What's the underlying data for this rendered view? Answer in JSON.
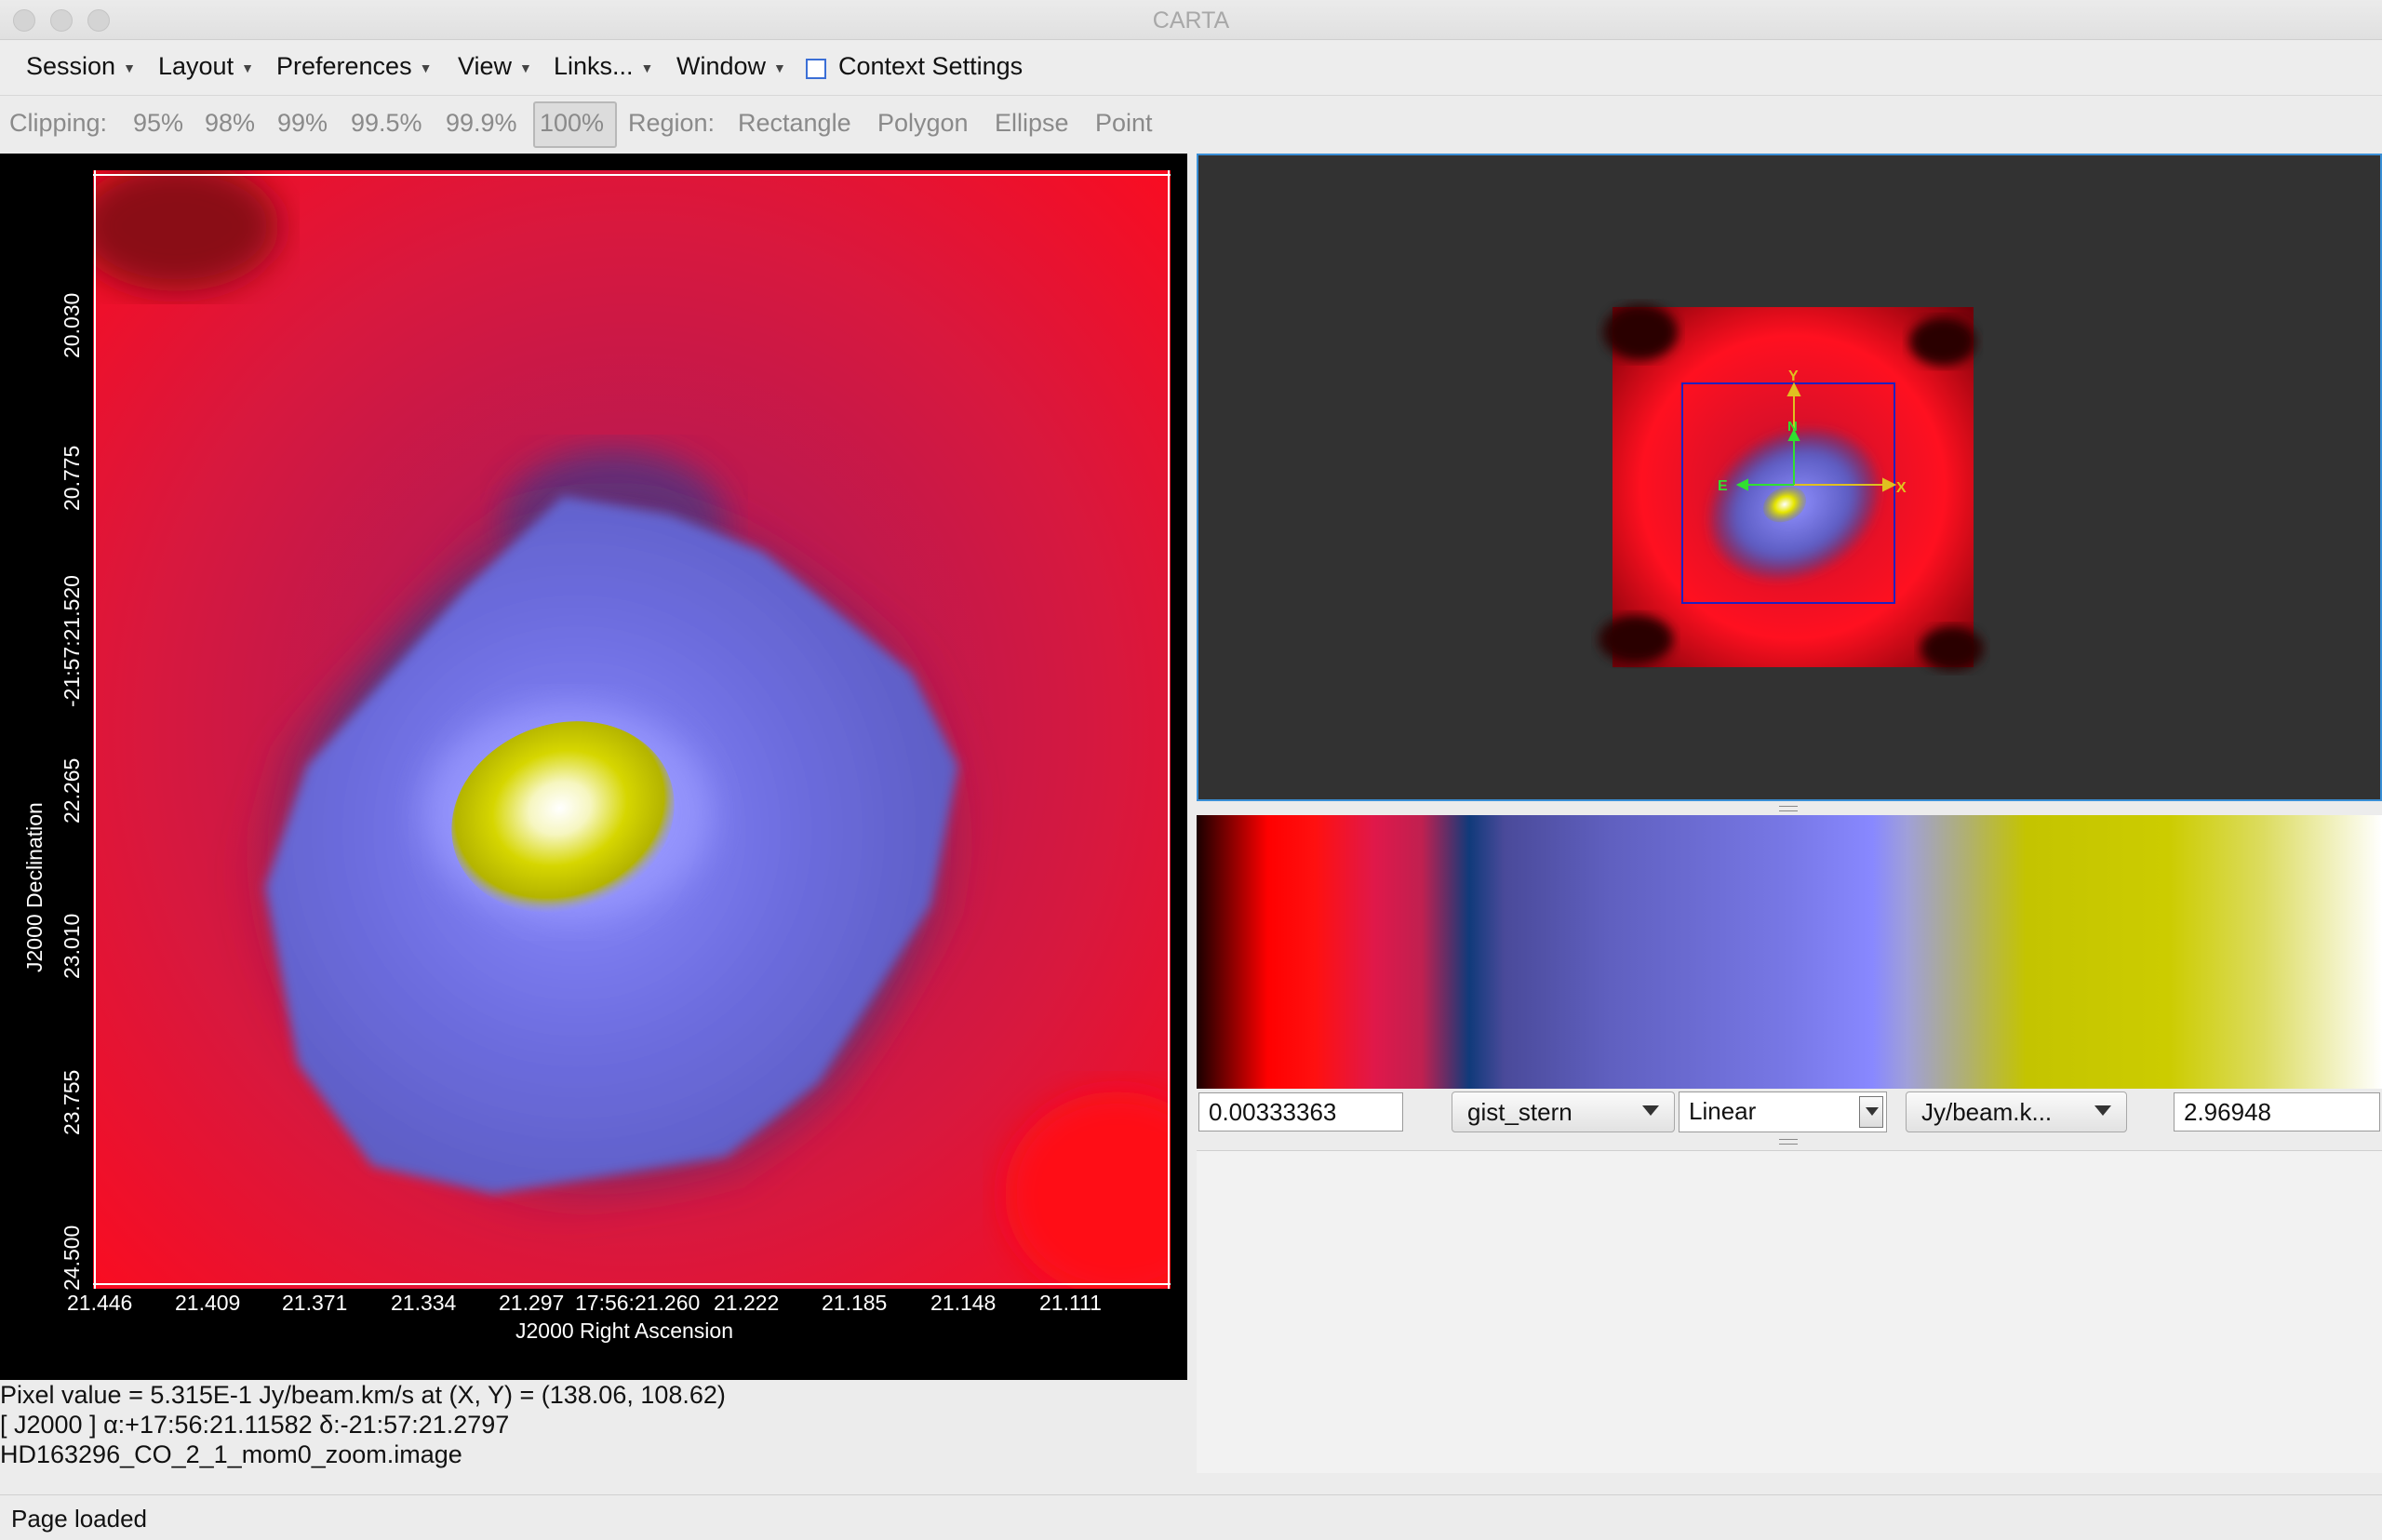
{
  "window": {
    "title": "CARTA"
  },
  "menu": {
    "session": "Session",
    "layout": "Layout",
    "preferences": "Preferences",
    "view": "View",
    "links": "Links...",
    "window": "Window",
    "context_settings": "Context Settings"
  },
  "toolbar": {
    "clipping_label": "Clipping:",
    "clip_options": [
      "95%",
      "98%",
      "99%",
      "99.5%",
      "99.9%",
      "100%"
    ],
    "clip_selected": "100%",
    "region_label": "Region:",
    "region_options": [
      "Rectangle",
      "Polygon",
      "Ellipse",
      "Point"
    ]
  },
  "image_view": {
    "y_ticks": [
      "20.030",
      "20.775",
      "-21:57:21.520",
      "22.265",
      "23.010",
      "23.755",
      "24.500"
    ],
    "x_ticks": [
      "21.446",
      "21.409",
      "21.371",
      "21.334",
      "21.297",
      "17:56:21.260",
      "21.222",
      "21.185",
      "21.148",
      "21.111"
    ],
    "y_label": "J2000 Declination",
    "x_label": "J2000 Right Ascension"
  },
  "cursor_info": {
    "pixel_value": "Pixel value = 5.315E-1 Jy/beam.km/s at (X, Y) = (138.06, 108.62)",
    "coords": "[ J2000 ] α:+17:56:21.11582 δ:-21:57:21.2797",
    "filename": "HD163296_CO_2_1_mom0_zoom.image"
  },
  "overview": {
    "axis_labels": {
      "y": "Y",
      "n": "N",
      "e": "E",
      "x": "X"
    }
  },
  "colormap": {
    "min_value": "0.00333363",
    "max_value": "2.96948",
    "name": "gist_stern",
    "scale": "Linear",
    "unit": "Jy/beam.k..."
  },
  "status": {
    "text": "Page loaded"
  },
  "colors": {
    "accent": "#3a8fd6",
    "panel_dark": "#323232"
  }
}
